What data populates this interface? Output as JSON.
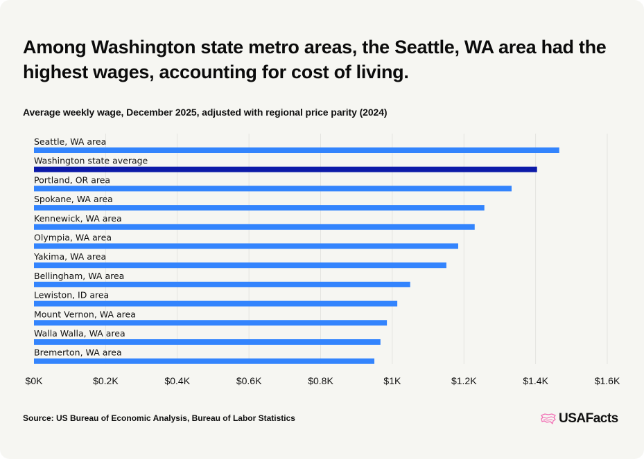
{
  "title": "Among Washington state metro areas, the Seattle, WA area had the highest wages, accounting for cost of living.",
  "subtitle": "Average weekly wage, December 2025, adjusted with regional price parity (2024)",
  "source": "Source: US Bureau of Economic Analysis, Bureau of Labor Statistics",
  "logo": {
    "text": "USAFacts",
    "icon": "usa-map-icon"
  },
  "colors": {
    "bar": "#3384fd",
    "highlight": "#0c1aa8",
    "grid": "#e4e4e0",
    "background": "#f6f6f2",
    "logo_icon": "#f26fb5"
  },
  "chart_data": {
    "type": "bar",
    "orientation": "horizontal",
    "title": "Among Washington state metro areas, the Seattle, WA area had the highest wages, accounting for cost of living.",
    "subtitle": "Average weekly wage, December 2025, adjusted with regional price parity (2024)",
    "xlabel": "",
    "ylabel": "",
    "categories": [
      "Seattle, WA area",
      "Washington state average",
      "Portland, OR area",
      "Spokane, WA area",
      "Kennewick, WA area",
      "Olympia, WA area",
      "Yakima, WA area",
      "Bellingham, WA area",
      "Lewiston, ID area",
      "Mount Vernon, WA area",
      "Walla Walla, WA area",
      "Bremerton, WA area"
    ],
    "values": [
      1466,
      1404,
      1333,
      1257,
      1230,
      1184,
      1151,
      1050,
      1014,
      985,
      967,
      950
    ],
    "highlight": [
      "Washington state average"
    ],
    "xlim": [
      0,
      1600
    ],
    "ticks": [
      0,
      200,
      400,
      600,
      800,
      1000,
      1200,
      1400,
      1600
    ],
    "tick_labels": [
      "$0K",
      "$0.2K",
      "$0.4K",
      "$0.6K",
      "$0.8K",
      "$1K",
      "$1.2K",
      "$1.4K",
      "$1.6K"
    ],
    "grid": true,
    "legend": "none"
  }
}
